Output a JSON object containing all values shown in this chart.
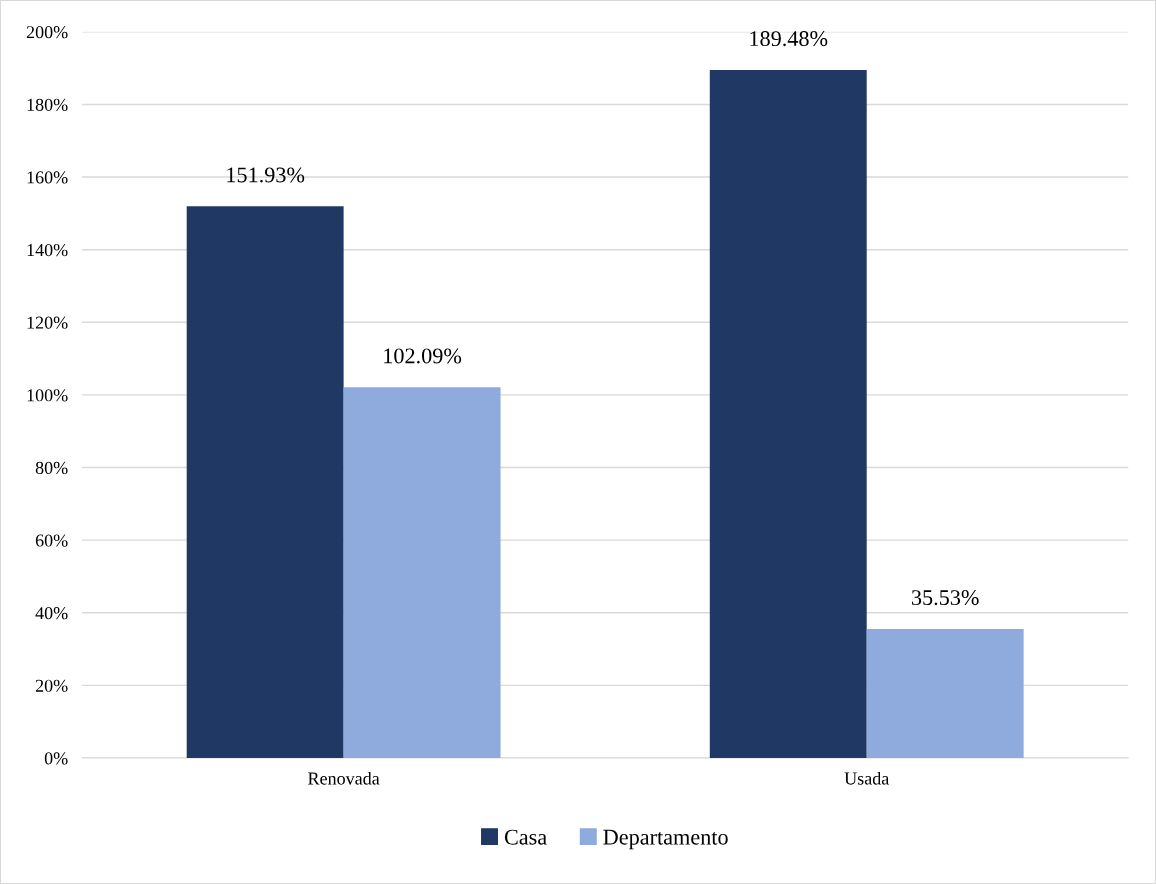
{
  "chart_data": {
    "type": "bar",
    "categories": [
      "Renovada",
      "Usada"
    ],
    "series": [
      {
        "name": "Casa",
        "color": "#203864",
        "values": [
          151.93,
          189.48
        ],
        "value_labels": [
          "151.93%",
          "189.48%"
        ]
      },
      {
        "name": "Departamento",
        "color": "#8faadc",
        "values": [
          102.09,
          35.53
        ],
        "value_labels": [
          "102.09%",
          "35.53%"
        ]
      }
    ],
    "ylim": [
      0,
      200
    ],
    "yticks": [
      {
        "value": 0,
        "label": "0%"
      },
      {
        "value": 20,
        "label": "20%"
      },
      {
        "value": 40,
        "label": "40%"
      },
      {
        "value": 60,
        "label": "60%"
      },
      {
        "value": 80,
        "label": "80%"
      },
      {
        "value": 100,
        "label": "100%"
      },
      {
        "value": 120,
        "label": "120%"
      },
      {
        "value": 140,
        "label": "140%"
      },
      {
        "value": 160,
        "label": "160%"
      },
      {
        "value": 180,
        "label": "180%"
      },
      {
        "value": 200,
        "label": "200%"
      }
    ],
    "grid": "y",
    "legend": "bottom"
  }
}
